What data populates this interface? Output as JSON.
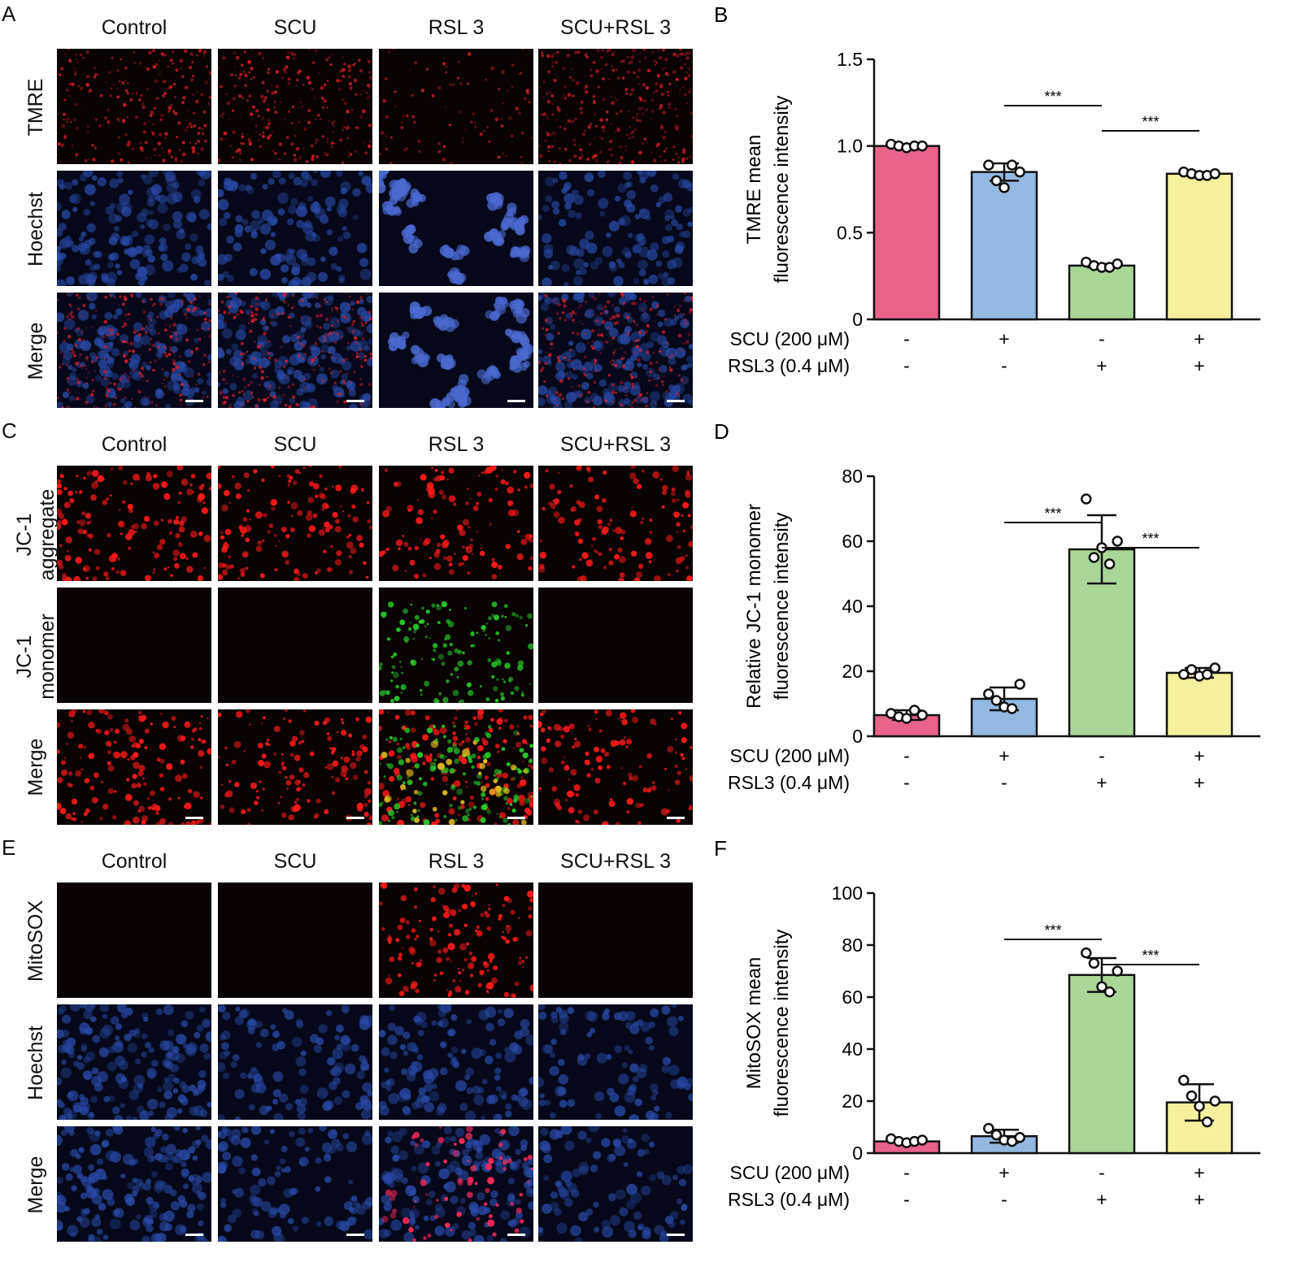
{
  "panels": {
    "A": {
      "letter": "A",
      "column_labels": [
        "Control",
        "SCU",
        "RSL 3",
        "SCU+RSL 3"
      ],
      "row_labels": [
        "TMRE",
        "Hoechst",
        "Merge"
      ]
    },
    "C": {
      "letter": "C",
      "column_labels": [
        "Control",
        "SCU",
        "RSL 3",
        "SCU+RSL 3"
      ],
      "row_labels": [
        "JC-1|aggregate",
        "JC-1|monomer",
        "Merge"
      ]
    },
    "E": {
      "letter": "E",
      "column_labels": [
        "Control",
        "SCU",
        "RSL 3",
        "SCU+RSL 3"
      ],
      "row_labels": [
        "MitoSOX",
        "Hoechst",
        "Merge"
      ]
    }
  },
  "colors": {
    "control": "#e8628a",
    "scu": "#93b9e2",
    "rsl3": "#a9d795",
    "combo": "#f4f09e",
    "image_bg": "#0a0304"
  },
  "chart_data": [
    {
      "letter": "B",
      "type": "bar",
      "ylabel": "TMRE mean|fluorescence intensity",
      "ylim": [
        0,
        1.5
      ],
      "yticks": [
        0,
        0.5,
        1.0,
        1.5
      ],
      "ytick_labels": [
        "0",
        "0.5",
        "1.0",
        "1.5"
      ],
      "values": [
        1.0,
        0.85,
        0.31,
        0.84
      ],
      "error": [
        0.01,
        0.05,
        0.01,
        0.01
      ],
      "points": [
        [
          1.01,
          1.0,
          0.99,
          1.0,
          1.0
        ],
        [
          0.89,
          0.8,
          0.76,
          0.89,
          0.85
        ],
        [
          0.33,
          0.31,
          0.3,
          0.3,
          0.32
        ],
        [
          0.85,
          0.84,
          0.83,
          0.83,
          0.84
        ]
      ],
      "significance": [
        {
          "from": 1,
          "to": 2,
          "label": "***"
        },
        {
          "from": 2,
          "to": 3,
          "label": "***"
        }
      ],
      "condition_rows": [
        {
          "label": "SCU (200 μM)",
          "signs": [
            "-",
            "+",
            "-",
            "+"
          ]
        },
        {
          "label": "RSL3 (0.4 μM)",
          "signs": [
            "-",
            "-",
            "+",
            "+"
          ]
        }
      ]
    },
    {
      "letter": "D",
      "type": "bar",
      "ylabel": "Relative JC-1 monomer|fluorescence intensity",
      "ylim": [
        0,
        80
      ],
      "yticks": [
        0,
        20,
        40,
        60,
        80
      ],
      "ytick_labels": [
        "0",
        "20",
        "40",
        "60",
        "80"
      ],
      "values": [
        6.5,
        11.5,
        57.5,
        19.5
      ],
      "error": [
        1.5,
        3.5,
        10.5,
        1.5
      ],
      "points": [
        [
          7,
          6,
          5.5,
          8,
          6.5
        ],
        [
          13,
          11,
          9,
          8.5,
          16
        ],
        [
          73,
          55,
          58,
          53,
          60
        ],
        [
          19,
          20.5,
          18.5,
          19,
          21
        ]
      ],
      "significance": [
        {
          "from": 1,
          "to": 2,
          "label": "***"
        },
        {
          "from": 2,
          "to": 3,
          "label": "***"
        }
      ],
      "condition_rows": [
        {
          "label": "SCU (200 μM)",
          "signs": [
            "-",
            "+",
            "-",
            "+"
          ]
        },
        {
          "label": "RSL3 (0.4 μM)",
          "signs": [
            "-",
            "-",
            "+",
            "+"
          ]
        }
      ]
    },
    {
      "letter": "F",
      "type": "bar",
      "ylabel": "MitoSOX mean|fluorescence intensity",
      "ylim": [
        0,
        100
      ],
      "yticks": [
        0,
        20,
        40,
        60,
        80,
        100
      ],
      "ytick_labels": [
        "0",
        "20",
        "40",
        "60",
        "80",
        "100"
      ],
      "values": [
        4.5,
        6.5,
        68.5,
        19.5
      ],
      "error": [
        0.5,
        2.5,
        6.5,
        7.0
      ],
      "points": [
        [
          5.5,
          4.5,
          4,
          4.5,
          5
        ],
        [
          9.5,
          7,
          5,
          4.5,
          6
        ],
        [
          77,
          73,
          64,
          62,
          70
        ],
        [
          28,
          22,
          18,
          12,
          20
        ]
      ],
      "significance": [
        {
          "from": 1,
          "to": 2,
          "label": "***"
        },
        {
          "from": 2,
          "to": 3,
          "label": "***"
        }
      ],
      "condition_rows": [
        {
          "label": "SCU (200 μM)",
          "signs": [
            "-",
            "+",
            "-",
            "+"
          ]
        },
        {
          "label": "RSL3 (0.4 μM)",
          "signs": [
            "-",
            "-",
            "+",
            "+"
          ]
        }
      ]
    }
  ]
}
